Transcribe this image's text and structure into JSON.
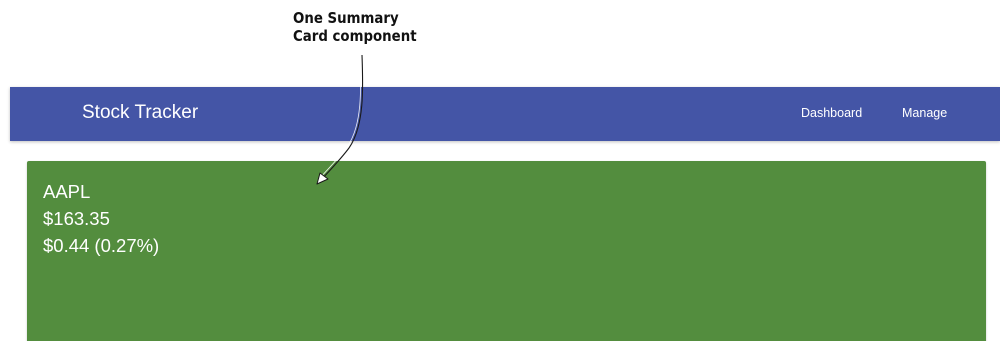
{
  "annotation": {
    "line1": "One Summary",
    "line2": "Card component"
  },
  "navbar": {
    "brand": "Stock Tracker",
    "links": [
      "Dashboard",
      "Manage"
    ]
  },
  "summary_card": {
    "symbol": "AAPL",
    "price": "$163.35",
    "change": "$0.44 (0.27%)",
    "background_color": "#538d3e"
  },
  "colors": {
    "navbar": "#4455a6",
    "text_on_dark": "#ffffff"
  }
}
